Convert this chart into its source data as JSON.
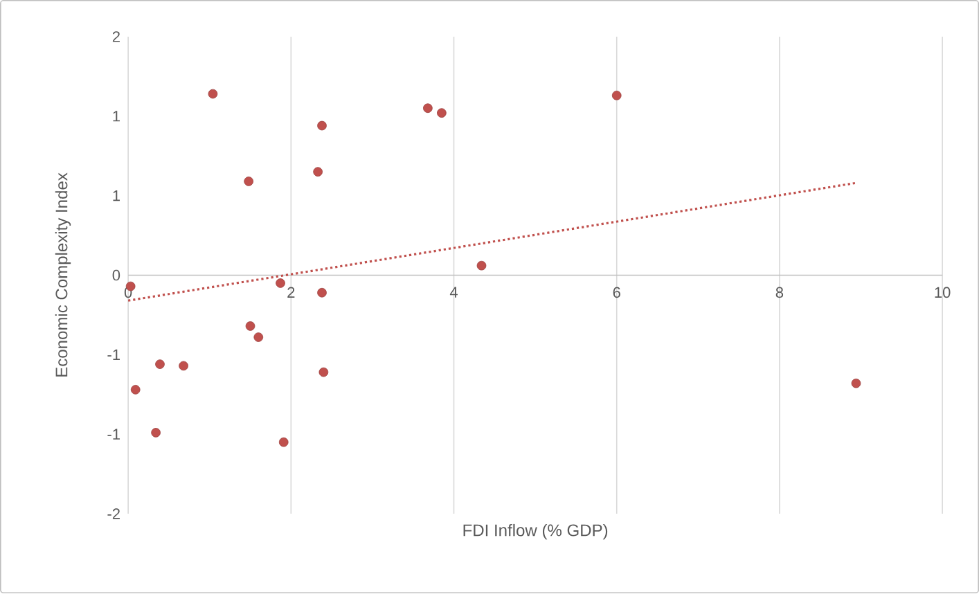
{
  "chart_data": {
    "type": "scatter",
    "xlabel": "FDI Inflow (% GDP)",
    "ylabel": "Economic Complexity Index",
    "xlim": [
      0,
      10
    ],
    "xticks": [
      0,
      2,
      4,
      6,
      8,
      10
    ],
    "ylim": [
      -1.5,
      1.5
    ],
    "yticks": [
      {
        "value": -1.5,
        "label": "-2"
      },
      {
        "value": -1,
        "label": "-1"
      },
      {
        "value": -0.5,
        "label": "-1"
      },
      {
        "value": 0,
        "label": "0"
      },
      {
        "value": 0.5,
        "label": "1"
      },
      {
        "value": 1,
        "label": "1"
      },
      {
        "value": 1.5,
        "label": "2"
      }
    ],
    "grid": "x",
    "marker": "circle",
    "series": [
      {
        "color": "#c0504d",
        "x": [
          0.03,
          0.09,
          0.39,
          0.34,
          0.68,
          1.04,
          1.48,
          1.5,
          1.6,
          1.87,
          1.91,
          2.33,
          2.38,
          2.38,
          2.4,
          3.68,
          3.85,
          4.34,
          6.0,
          8.94
        ],
        "values": [
          -0.07,
          -0.72,
          -0.56,
          -0.99,
          -0.57,
          1.14,
          0.59,
          -0.32,
          -0.39,
          -0.05,
          -1.05,
          0.65,
          0.94,
          -0.11,
          -0.61,
          1.05,
          1.02,
          0.06,
          1.13,
          -0.68
        ]
      },
      {
        "type": "line",
        "color": "#c0504d",
        "line_style": "dotted",
        "marker": "none",
        "x": [
          0,
          8.94
        ],
        "values": [
          -0.16,
          0.58
        ]
      }
    ]
  }
}
